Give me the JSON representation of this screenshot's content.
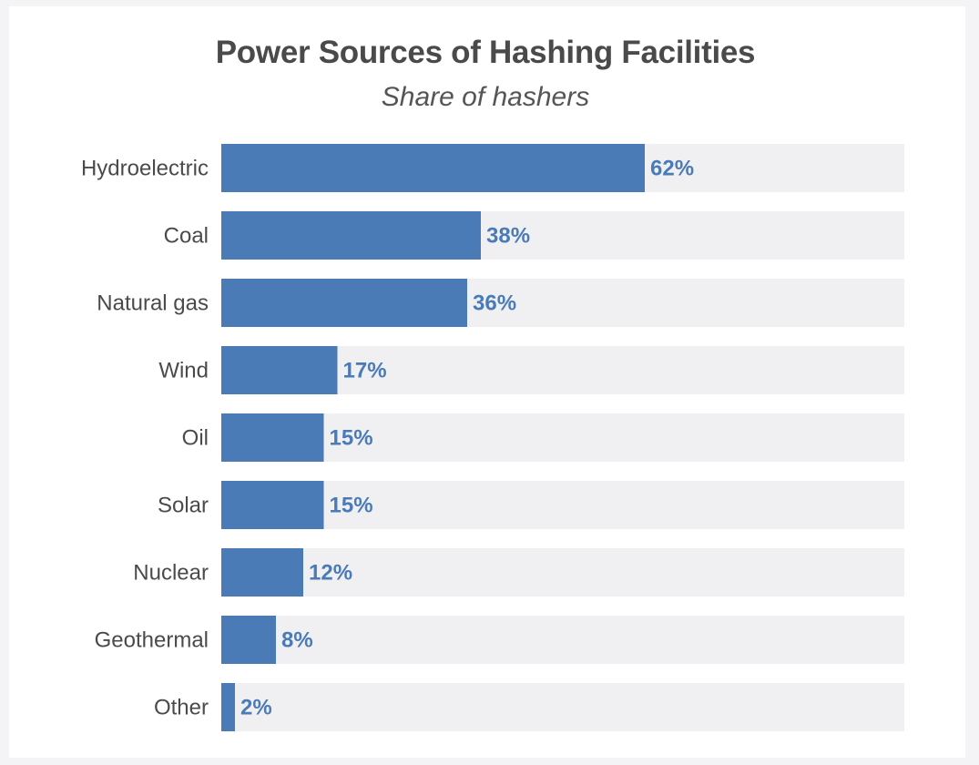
{
  "chart_data": {
    "type": "bar",
    "orientation": "horizontal",
    "title": "Power Sources of Hashing Facilities",
    "subtitle": "Share of hashers",
    "categories": [
      "Hydroelectric",
      "Coal",
      "Natural gas",
      "Wind",
      "Oil",
      "Solar",
      "Nuclear",
      "Geothermal",
      "Other"
    ],
    "values": [
      62,
      38,
      36,
      17,
      15,
      15,
      12,
      8,
      2
    ],
    "value_labels": [
      "62%",
      "38%",
      "36%",
      "17%",
      "15%",
      "15%",
      "12%",
      "8%",
      "2%"
    ],
    "xlim": [
      0,
      100
    ],
    "unit": "%",
    "grid": false,
    "legend": "none",
    "colors": {
      "bar": "#4a7bb7",
      "track": "#f0f0f3",
      "value_text": "#4a7bb7",
      "label_text": "#4a4a4a",
      "title_text": "#4a4a4a"
    }
  }
}
